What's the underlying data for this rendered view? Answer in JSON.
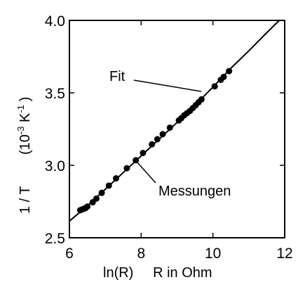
{
  "chart_data": {
    "type": "scatter",
    "xlabel": "ln(R)     R in Ohm",
    "ylabel_main": "1 / T",
    "ylabel_unit": {
      "open": "(10",
      "exp1": "-3",
      "mid": " K",
      "exp2": "-1",
      "close": ")"
    },
    "xlim": [
      6,
      12
    ],
    "ylim": [
      2.5,
      4.0
    ],
    "xticks": [
      6,
      8,
      10,
      12
    ],
    "xtick_labels": [
      "6",
      "8",
      "10",
      "12"
    ],
    "yticks": [
      2.5,
      3.0,
      3.5,
      4.0
    ],
    "ytick_labels": [
      "2.5",
      "3.0",
      "3.5",
      "4.0"
    ],
    "grid": false,
    "annotations": [
      {
        "text": "Fit",
        "target": "line"
      },
      {
        "text": "Messungen",
        "target": "points"
      }
    ],
    "series": [
      {
        "kind": "points",
        "x": [
          6.3,
          6.35,
          6.4,
          6.45,
          6.5,
          6.65,
          6.75,
          6.9,
          7.1,
          7.3,
          7.6,
          7.85,
          8.05,
          8.3,
          8.45,
          8.6,
          8.8,
          9.05,
          9.12,
          9.2,
          9.28,
          9.36,
          9.44,
          9.52,
          9.6,
          9.68,
          10.05,
          10.22,
          10.3,
          10.45
        ],
        "y": [
          2.69,
          2.695,
          2.7,
          2.705,
          2.715,
          2.745,
          2.77,
          2.81,
          2.86,
          2.91,
          2.98,
          3.035,
          3.085,
          3.145,
          3.18,
          3.215,
          3.26,
          3.31,
          3.325,
          3.345,
          3.36,
          3.375,
          3.395,
          3.415,
          3.435,
          3.455,
          3.545,
          3.59,
          3.61,
          3.65
        ]
      },
      {
        "kind": "line",
        "x": [
          6.0,
          6.5,
          7.0,
          7.5,
          8.0,
          8.5,
          9.0,
          9.5,
          10.0,
          10.5,
          11.0,
          11.5,
          11.85
        ],
        "y": [
          2.615,
          2.72,
          2.835,
          2.95,
          3.065,
          3.18,
          3.295,
          3.415,
          3.54,
          3.67,
          3.79,
          3.915,
          4.0
        ]
      }
    ]
  }
}
